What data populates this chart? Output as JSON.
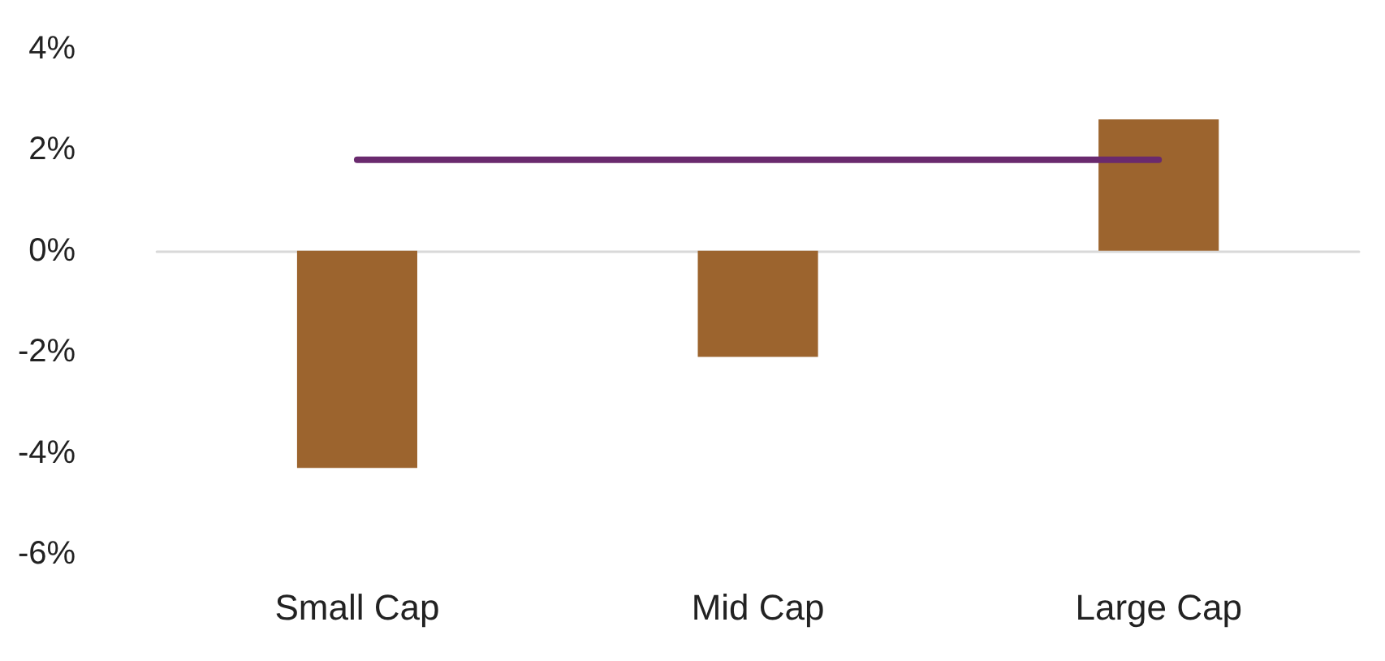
{
  "chart_data": {
    "type": "bar",
    "categories": [
      "Small Cap",
      "Mid Cap",
      "Large Cap"
    ],
    "series": [
      {
        "color": "#9c642e",
        "values": [
          -4.3,
          -2.1,
          2.6
        ]
      },
      {
        "type": "line",
        "color": "#6a2a6e",
        "values": [
          1.8,
          1.8,
          1.8
        ]
      }
    ],
    "ylim": [
      -6,
      4
    ],
    "yticks": [
      {
        "value": -6,
        "label": "-6%"
      },
      {
        "value": -4,
        "label": "-4%"
      },
      {
        "value": -2,
        "label": "-2%"
      },
      {
        "value": 0,
        "label": "0%"
      },
      {
        "value": 2,
        "label": "2%"
      },
      {
        "value": 4,
        "label": "4%"
      }
    ],
    "marker": "none",
    "line_style": "solid"
  }
}
